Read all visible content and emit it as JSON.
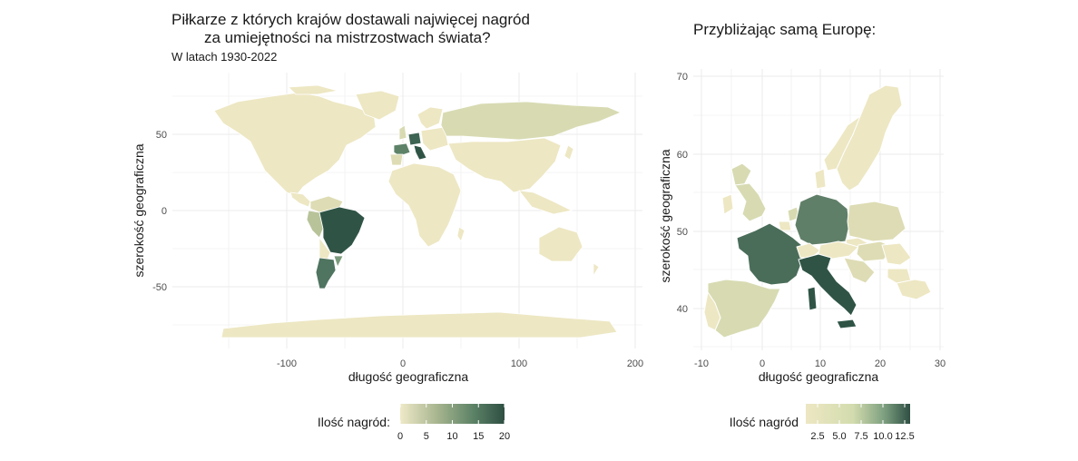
{
  "left_panel": {
    "title_line1": "Piłkarze z których krajów dostawali najwięcej nagród",
    "title_line2": "za umiejętności na mistrzostwach świata?",
    "subtitle": "W latach 1930-2022",
    "xlabel": "długość geograficzna",
    "ylabel": "szerokość geograficzna",
    "x_ticks": [
      "-100",
      "0",
      "100",
      "200"
    ],
    "y_ticks": [
      "50",
      "0",
      "-50"
    ],
    "legend_title": "Ilość nagród:",
    "legend_ticks": [
      "0",
      "5",
      "10",
      "15",
      "20"
    ]
  },
  "right_panel": {
    "title": "Przybliżając samą Europę:",
    "xlabel": "długość geograficzna",
    "ylabel": "szerokość geograficzna",
    "x_ticks": [
      "-10",
      "0",
      "10",
      "20",
      "30"
    ],
    "y_ticks": [
      "70",
      "60",
      "50",
      "40"
    ],
    "legend_title": "Ilość nagród",
    "legend_ticks": [
      "2.5",
      "5.0",
      "7.5",
      "10.0",
      "12.5"
    ]
  },
  "colors": {
    "low": "#ede7c3",
    "mid": "#6f9474",
    "high": "#2e4f43",
    "grid": "#ebebeb",
    "border": "#ffffff"
  },
  "chart_data": [
    {
      "type": "choropleth",
      "region": "world",
      "xlim": [
        -180,
        200
      ],
      "ylim": [
        -90,
        85
      ],
      "legend_range": [
        0,
        20
      ],
      "highlighted_countries": [
        "Brazil",
        "Argentina",
        "Germany",
        "France",
        "Italy",
        "Netherlands"
      ]
    },
    {
      "type": "choropleth",
      "region": "europe",
      "xlim": [
        -10,
        30
      ],
      "ylim": [
        35,
        71
      ],
      "legend_range": [
        1,
        13
      ],
      "highlighted_countries": [
        "Italy",
        "France",
        "Germany",
        "Spain",
        "United Kingdom",
        "Sweden",
        "Poland",
        "Switzerland",
        "Austria",
        "Hungary"
      ]
    }
  ]
}
